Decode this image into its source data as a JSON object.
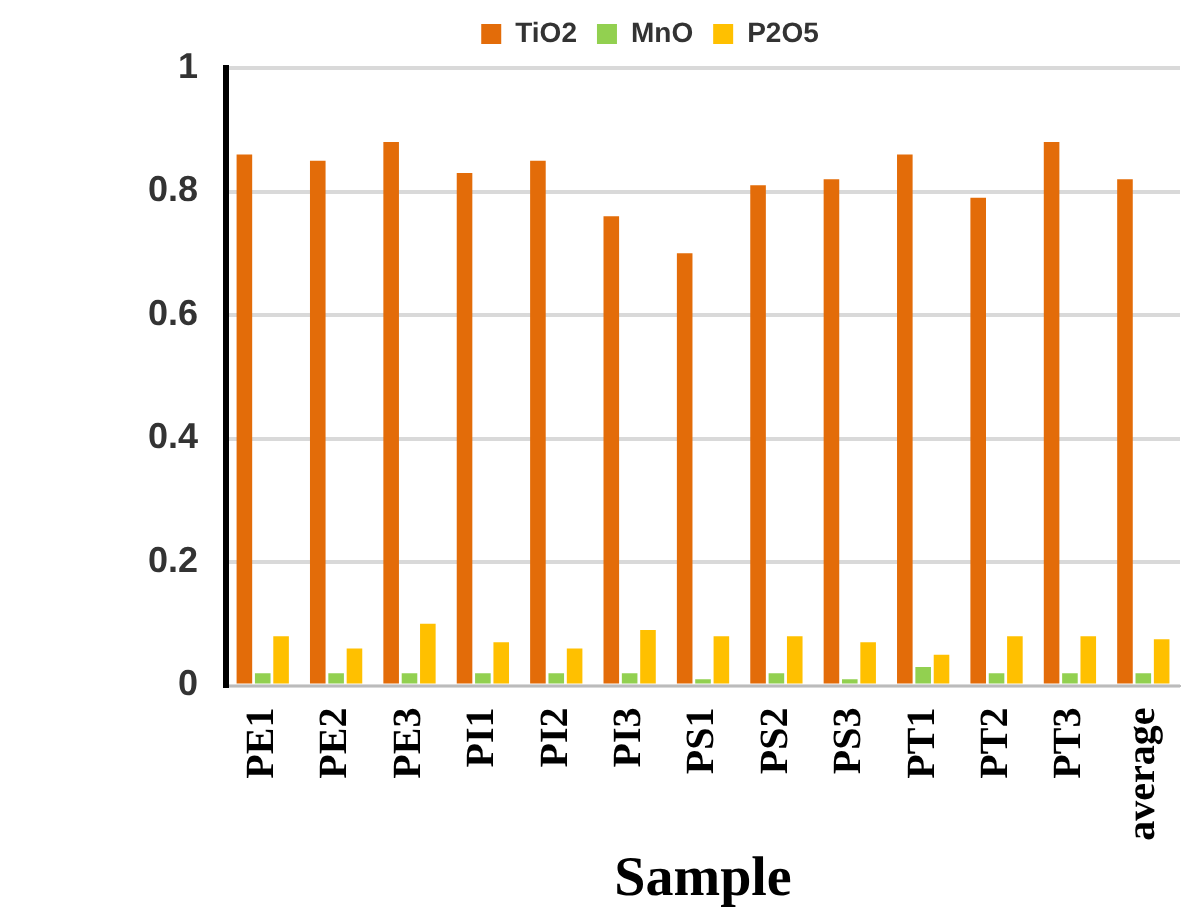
{
  "chart_data": {
    "type": "bar",
    "xlabel": "Sample",
    "categories": [
      "PE1",
      "PE2",
      "PE3",
      "PI1",
      "PI2",
      "PI3",
      "PS1",
      "PS2",
      "PS3",
      "PT1",
      "PT2",
      "PT3",
      "average"
    ],
    "series": [
      {
        "name": "TiO2",
        "color": "#e36c09",
        "values": [
          0.86,
          0.85,
          0.88,
          0.83,
          0.85,
          0.76,
          0.7,
          0.81,
          0.82,
          0.86,
          0.79,
          0.88,
          0.82
        ]
      },
      {
        "name": "MnO",
        "color": "#92d050",
        "values": [
          0.02,
          0.02,
          0.02,
          0.02,
          0.02,
          0.02,
          0.01,
          0.02,
          0.01,
          0.03,
          0.02,
          0.02,
          0.02
        ]
      },
      {
        "name": "P2O5",
        "color": "#ffc000",
        "values": [
          0.08,
          0.06,
          0.1,
          0.07,
          0.06,
          0.09,
          0.08,
          0.08,
          0.07,
          0.05,
          0.08,
          0.08,
          0.075
        ]
      }
    ],
    "ylim": [
      0,
      1
    ],
    "yticks": [
      0,
      0.2,
      0.4,
      0.6,
      0.8,
      1
    ],
    "grid": "y",
    "legend": "top"
  }
}
